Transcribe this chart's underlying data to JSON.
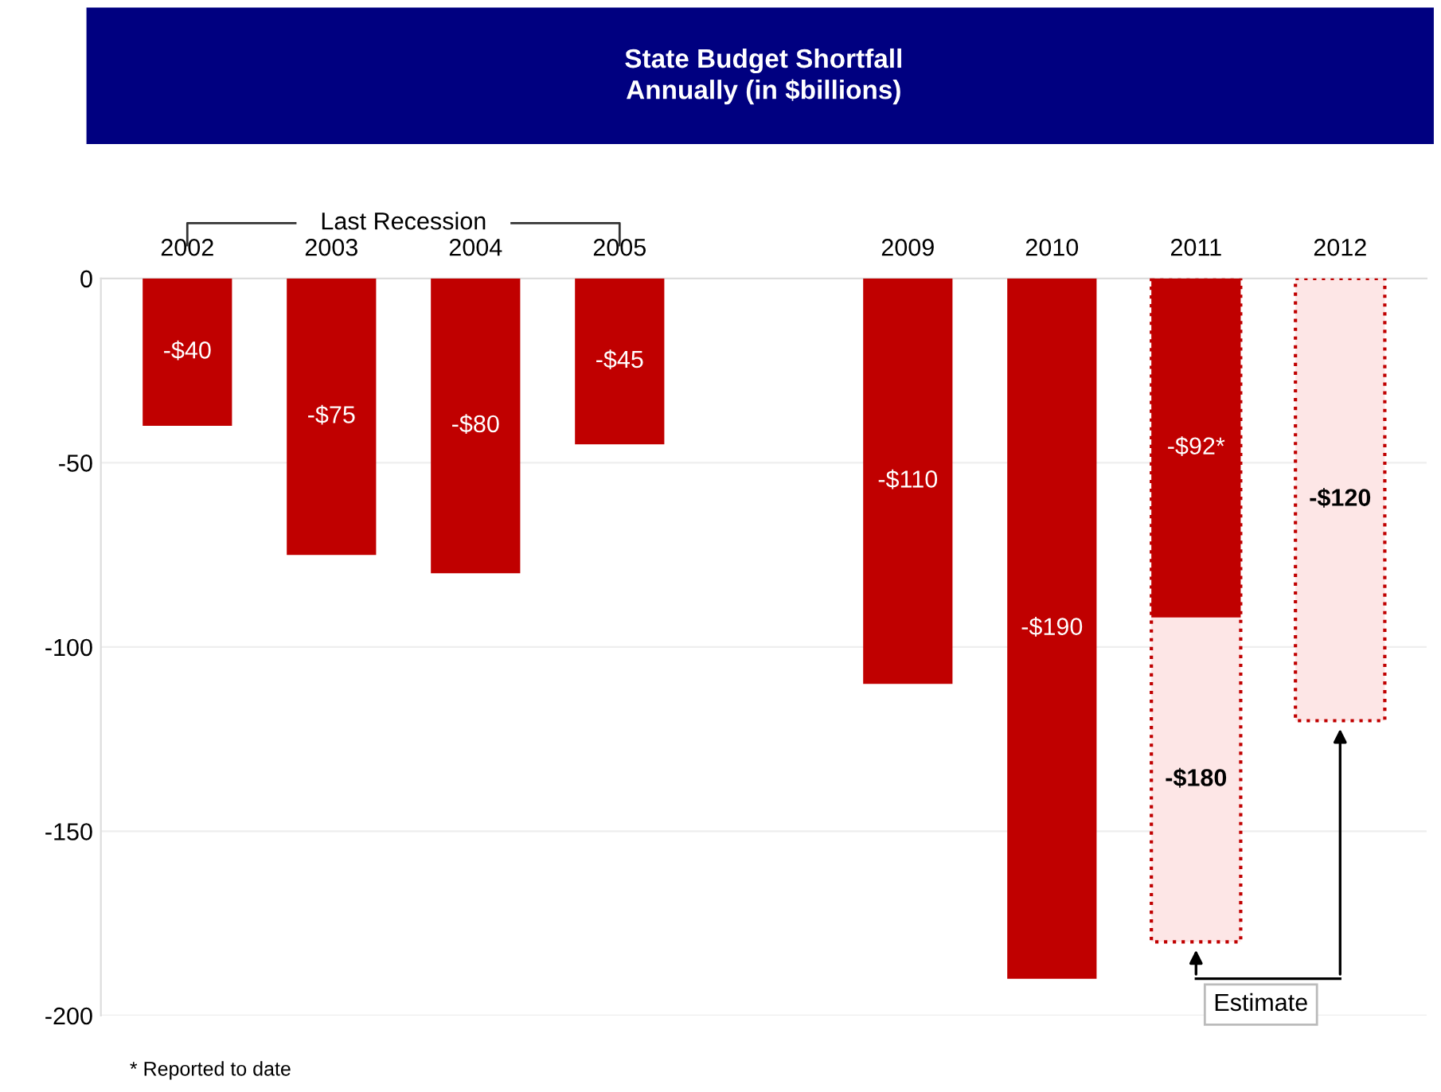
{
  "chart_data": {
    "type": "bar",
    "title": "State Budget Shortfall\nAnnually (in $billions)",
    "categories": [
      "2002",
      "2003",
      "2004",
      "2005",
      null,
      "2009",
      "2010",
      "2011",
      "2012"
    ],
    "series": [
      {
        "color": "#c00000",
        "values": [
          -40,
          -75,
          -80,
          -45,
          null,
          -110,
          -190,
          -92,
          null
        ],
        "value_labels": [
          "-$40",
          "-$75",
          "-$80",
          "-$45",
          null,
          "-$110",
          "-$190",
          "-$92*",
          null
        ]
      },
      {
        "color": "#fde6e6",
        "line_style": "dotted",
        "values": [
          null,
          null,
          null,
          null,
          null,
          null,
          null,
          -180,
          -120
        ],
        "value_labels": [
          null,
          null,
          null,
          null,
          null,
          null,
          null,
          "-$180",
          "-$120"
        ]
      }
    ],
    "ylim": [
      -200,
      0
    ],
    "yticks": [
      0,
      -50,
      -100,
      -150,
      -200
    ],
    "grid": "y",
    "annotations": [
      "Last Recession",
      "Estimate",
      "* Reported to date"
    ]
  }
}
